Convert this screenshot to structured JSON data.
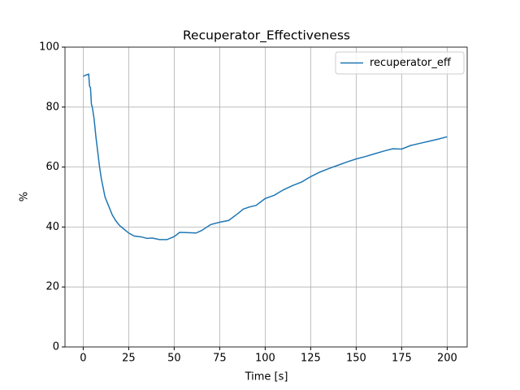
{
  "chart_data": {
    "type": "line",
    "title": "Recuperator_Effectiveness",
    "xlabel": "Time [s]",
    "ylabel": "%",
    "x": [
      0,
      2,
      3,
      3.5,
      4,
      4.5,
      5,
      6,
      7,
      8,
      9,
      10,
      11,
      12,
      14,
      16,
      18,
      20,
      22,
      25,
      28,
      32,
      35,
      38,
      42,
      46,
      50,
      53,
      58,
      62,
      65,
      70,
      75,
      80,
      85,
      88,
      92,
      95,
      100,
      105,
      110,
      115,
      120,
      125,
      130,
      135,
      140,
      145,
      150,
      155,
      160,
      165,
      170,
      175,
      180,
      185,
      190,
      195,
      200
    ],
    "series": [
      {
        "name": "recuperator_eff",
        "color": "#1f77b4",
        "values": [
          90.3,
          90.8,
          91,
          87,
          86.5,
          81,
          80,
          76,
          70,
          65,
          60,
          56,
          53,
          50,
          47,
          44,
          42,
          40.5,
          39.5,
          38,
          37,
          36.7,
          36.2,
          36.3,
          35.8,
          35.8,
          36.8,
          38.2,
          38.1,
          38,
          38.8,
          40.8,
          41.6,
          42.2,
          44.5,
          46,
          46.8,
          47.2,
          49.5,
          50.6,
          52.4,
          53.8,
          55,
          56.8,
          58.3,
          59.5,
          60.6,
          61.7,
          62.7,
          63.5,
          64.4,
          65.3,
          66.1,
          66,
          67.2,
          67.9,
          68.6,
          69.3,
          70.1
        ]
      }
    ],
    "xlim": [
      -10,
      211
    ],
    "ylim": [
      0,
      100
    ],
    "xticks": [
      0,
      25,
      50,
      75,
      100,
      125,
      150,
      175,
      200
    ],
    "yticks": [
      0,
      20,
      40,
      60,
      80,
      100
    ],
    "grid": true,
    "legend": "upper right"
  }
}
